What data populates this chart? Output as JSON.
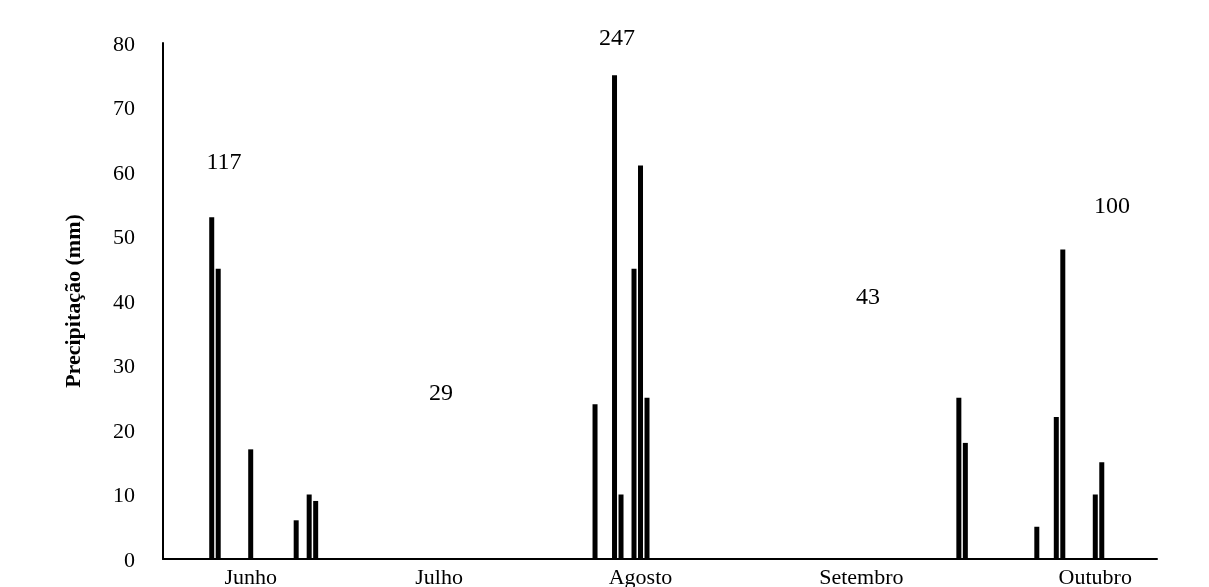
{
  "chart_data": {
    "type": "bar",
    "ylabel": "Precipitação (mm)",
    "categories": [
      null,
      null,
      null,
      null,
      null,
      null,
      null,
      null,
      null,
      null,
      null,
      null,
      null,
      "Junho",
      null,
      null,
      null,
      null,
      null,
      null,
      null,
      null,
      null,
      null,
      null,
      null,
      null,
      null,
      null,
      null,
      null,
      null,
      null,
      null,
      null,
      null,
      null,
      null,
      null,
      null,
      null,
      null,
      "Julho",
      null,
      null,
      null,
      null,
      null,
      null,
      null,
      null,
      null,
      null,
      null,
      null,
      null,
      null,
      null,
      null,
      null,
      null,
      null,
      null,
      null,
      null,
      null,
      null,
      null,
      null,
      null,
      null,
      null,
      null,
      "Agosto",
      null,
      null,
      null,
      null,
      null,
      null,
      null,
      null,
      null,
      null,
      null,
      null,
      null,
      null,
      null,
      null,
      null,
      null,
      null,
      null,
      null,
      null,
      null,
      null,
      null,
      null,
      null,
      null,
      null,
      null,
      null,
      null,
      null,
      "Setembro",
      null,
      null,
      null,
      null,
      null,
      null,
      null,
      null,
      null,
      null,
      null,
      null,
      null,
      null,
      null,
      null,
      null,
      null,
      null,
      null,
      null,
      null,
      null,
      null,
      null,
      null,
      null,
      null,
      null,
      null,
      null,
      null,
      null,
      null,
      null,
      "Outubro",
      null,
      null,
      null,
      null,
      null,
      null,
      null,
      null,
      null
    ],
    "values": [
      null,
      null,
      null,
      null,
      null,
      null,
      null,
      53,
      45,
      null,
      null,
      null,
      null,
      17,
      null,
      null,
      null,
      null,
      null,
      null,
      6,
      null,
      10,
      9,
      null,
      null,
      null,
      null,
      null,
      null,
      null,
      null,
      null,
      null,
      null,
      null,
      null,
      null,
      null,
      null,
      null,
      null,
      null,
      null,
      null,
      null,
      null,
      null,
      null,
      null,
      null,
      null,
      null,
      null,
      null,
      null,
      null,
      null,
      null,
      null,
      null,
      null,
      null,
      null,
      null,
      null,
      24,
      null,
      null,
      75,
      10,
      null,
      45,
      61,
      25,
      null,
      null,
      null,
      null,
      null,
      null,
      null,
      null,
      null,
      null,
      null,
      null,
      null,
      null,
      null,
      null,
      null,
      null,
      null,
      null,
      null,
      null,
      null,
      null,
      null,
      null,
      null,
      null,
      null,
      null,
      null,
      null,
      null,
      null,
      null,
      null,
      null,
      null,
      null,
      null,
      null,
      null,
      null,
      null,
      null,
      null,
      null,
      25,
      18,
      null,
      null,
      null,
      null,
      null,
      null,
      null,
      null,
      null,
      null,
      5,
      null,
      null,
      22,
      48,
      null,
      null,
      null,
      null,
      10,
      15,
      null,
      null,
      null,
      null,
      null,
      null,
      null,
      null
    ],
    "color": "#000000",
    "ylim": [
      0,
      80
    ],
    "yticks": [
      0,
      10,
      20,
      30,
      40,
      50,
      60,
      70,
      80
    ],
    "grid": false,
    "annotations": [
      "117",
      "29",
      "247",
      "43",
      "100"
    ]
  }
}
